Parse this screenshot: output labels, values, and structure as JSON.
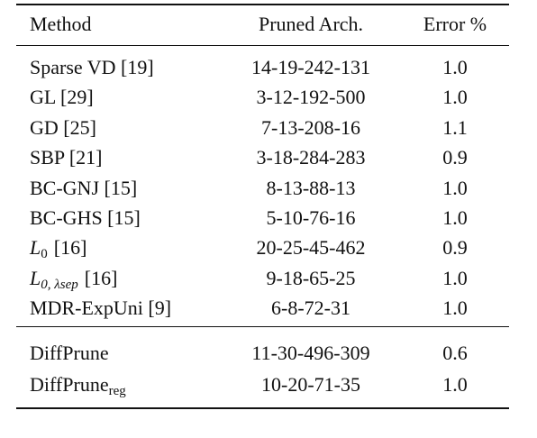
{
  "table": {
    "header": [
      "Method",
      "Pruned Arch.",
      "Error %"
    ],
    "groups": [
      [
        {
          "method": "Sparse VD [19]",
          "arch": "14-19-242-131",
          "error": "1.0"
        },
        {
          "method": "GL [29]",
          "arch": "3-12-192-500",
          "error": "1.0"
        },
        {
          "method": "GD [25]",
          "arch": "7-13-208-16",
          "error": "1.1"
        },
        {
          "method": "SBP [21]",
          "arch": "3-18-284-283",
          "error": "0.9"
        },
        {
          "method": "BC-GNJ [15]",
          "arch": "8-13-88-13",
          "error": "1.0"
        },
        {
          "method": "BC-GHS [15]",
          "arch": "5-10-76-16",
          "error": "1.0"
        },
        {
          "method": {
            "text": "L",
            "sub": "0",
            "suffix": "[16]"
          },
          "arch": "20-25-45-462",
          "error": "0.9"
        },
        {
          "method": {
            "text": "L",
            "sub": "0, λsep",
            "suffix": "[16]"
          },
          "arch": "9-18-65-25",
          "error": "1.0"
        },
        {
          "method": "MDR-ExpUni [9]",
          "arch": "6-8-72-31",
          "error": "1.0"
        }
      ],
      [
        {
          "method": "DiffPrune",
          "arch": "11-30-496-309",
          "error": "0.6"
        },
        {
          "method": {
            "text": "DiffPrune",
            "sub": "reg"
          },
          "arch": "10-20-71-35",
          "error": "1.0"
        }
      ]
    ]
  }
}
